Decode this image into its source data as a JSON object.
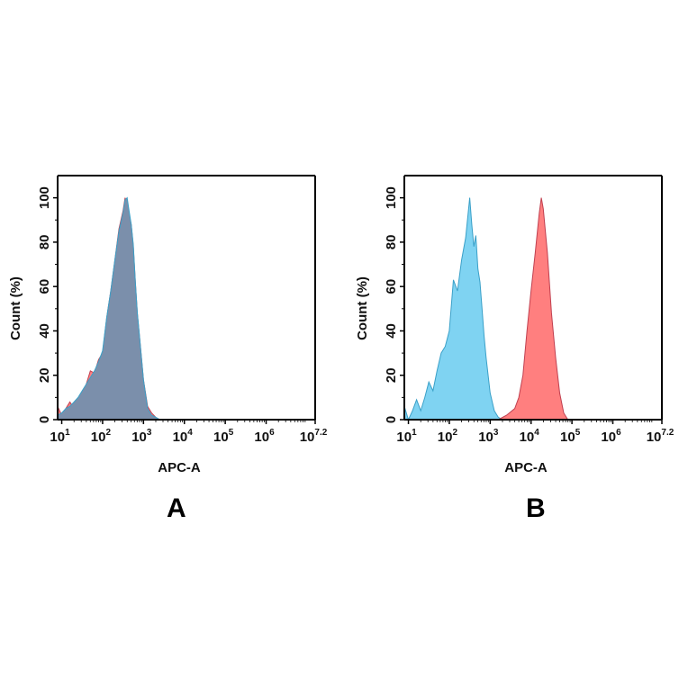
{
  "chart_data": [
    {
      "type": "area",
      "panel_label": "A",
      "title": "",
      "xlabel": "APC-A",
      "ylabel": "Count  (%)",
      "xscale": "log",
      "xlim_log10": [
        0.9,
        7.2
      ],
      "ylim": [
        0,
        110
      ],
      "x_tick_labels": [
        {
          "base": "10",
          "exp": "1",
          "log": 1
        },
        {
          "base": "10",
          "exp": "2",
          "log": 2
        },
        {
          "base": "10",
          "exp": "3",
          "log": 3
        },
        {
          "base": "10",
          "exp": "4",
          "log": 4
        },
        {
          "base": "10",
          "exp": "5",
          "log": 5
        },
        {
          "base": "10",
          "exp": "6",
          "log": 6
        },
        {
          "base": "10",
          "exp": "7.2",
          "log": 7.2
        }
      ],
      "y_tick_labels": [
        "0",
        "20",
        "40",
        "60",
        "80",
        "100"
      ],
      "grid": false,
      "legend": null,
      "series": [
        {
          "name": "red histogram (overlaid)",
          "color": "#f07070",
          "x_log10": [
            0.9,
            1.0,
            1.1,
            1.2,
            1.3,
            1.4,
            1.5,
            1.6,
            1.7,
            1.8,
            1.9,
            2.0,
            2.1,
            2.2,
            2.3,
            2.4,
            2.5,
            2.55,
            2.6,
            2.65,
            2.7,
            2.75,
            2.8,
            2.85,
            2.9,
            3.0,
            3.1,
            3.2,
            3.3,
            3.4
          ],
          "values": [
            6,
            2,
            5,
            8,
            5,
            8,
            12,
            16,
            22,
            21,
            27,
            30,
            46,
            58,
            72,
            86,
            94,
            100,
            97,
            92,
            88,
            78,
            62,
            48,
            38,
            18,
            6,
            3,
            1,
            0
          ]
        },
        {
          "name": "blue histogram (overlaid)",
          "color": "#6fc9ec",
          "x_log10": [
            0.9,
            1.0,
            1.1,
            1.2,
            1.3,
            1.4,
            1.5,
            1.6,
            1.7,
            1.8,
            1.9,
            2.0,
            2.1,
            2.2,
            2.3,
            2.4,
            2.5,
            2.55,
            2.6,
            2.65,
            2.7,
            2.75,
            2.8,
            2.85,
            2.9,
            3.0,
            3.1,
            3.2,
            3.3,
            3.4
          ],
          "values": [
            2,
            3,
            5,
            6,
            8,
            10,
            13,
            16,
            19,
            22,
            26,
            31,
            46,
            58,
            72,
            85,
            93,
            99,
            100,
            94,
            88,
            79,
            62,
            48,
            38,
            18,
            5,
            2,
            1,
            0
          ]
        }
      ]
    },
    {
      "type": "area",
      "panel_label": "B",
      "title": "",
      "xlabel": "APC-A",
      "ylabel": "Count  (%)",
      "xscale": "log",
      "xlim_log10": [
        0.9,
        7.2
      ],
      "ylim": [
        0,
        110
      ],
      "x_tick_labels": [
        {
          "base": "10",
          "exp": "1",
          "log": 1
        },
        {
          "base": "10",
          "exp": "2",
          "log": 2
        },
        {
          "base": "10",
          "exp": "3",
          "log": 3
        },
        {
          "base": "10",
          "exp": "4",
          "log": 4
        },
        {
          "base": "10",
          "exp": "5",
          "log": 5
        },
        {
          "base": "10",
          "exp": "6",
          "log": 6
        },
        {
          "base": "10",
          "exp": "7.2",
          "log": 7.2
        }
      ],
      "y_tick_labels": [
        "0",
        "20",
        "40",
        "60",
        "80",
        "100"
      ],
      "grid": false,
      "legend": null,
      "series": [
        {
          "name": "blue histogram (control)",
          "color": "#7fd3f2",
          "x_log10": [
            0.9,
            1.0,
            1.1,
            1.2,
            1.3,
            1.4,
            1.5,
            1.6,
            1.7,
            1.8,
            1.9,
            2.0,
            2.1,
            2.2,
            2.3,
            2.4,
            2.5,
            2.55,
            2.6,
            2.65,
            2.7,
            2.75,
            2.8,
            2.85,
            2.9,
            3.0,
            3.1,
            3.2,
            3.3
          ],
          "values": [
            6,
            0,
            4,
            9,
            4,
            10,
            17,
            13,
            22,
            30,
            33,
            40,
            63,
            58,
            72,
            82,
            100,
            88,
            78,
            83,
            68,
            62,
            50,
            38,
            28,
            12,
            4,
            1,
            0
          ]
        },
        {
          "name": "red histogram (sample)",
          "color": "#ff8080",
          "x_log10": [
            3.2,
            3.4,
            3.6,
            3.7,
            3.8,
            3.9,
            4.0,
            4.1,
            4.2,
            4.25,
            4.3,
            4.4,
            4.5,
            4.6,
            4.7,
            4.8,
            4.9
          ],
          "values": [
            0,
            2,
            5,
            10,
            20,
            40,
            58,
            75,
            93,
            100,
            95,
            75,
            48,
            28,
            12,
            3,
            0
          ]
        }
      ]
    }
  ],
  "panels": {
    "a": {
      "letter": "A",
      "xlabel": "APC-A",
      "ylabel": "Count  (%)"
    },
    "b": {
      "letter": "B",
      "xlabel": "APC-A",
      "ylabel": "Count  (%)"
    }
  },
  "colors": {
    "overlap_fill": "#7b8fab",
    "red_fill": "#ff7f7f",
    "blue_fill": "#7fd3f2",
    "red_stroke": "#c04050",
    "blue_stroke": "#3aa0c8",
    "axis": "#000000"
  }
}
